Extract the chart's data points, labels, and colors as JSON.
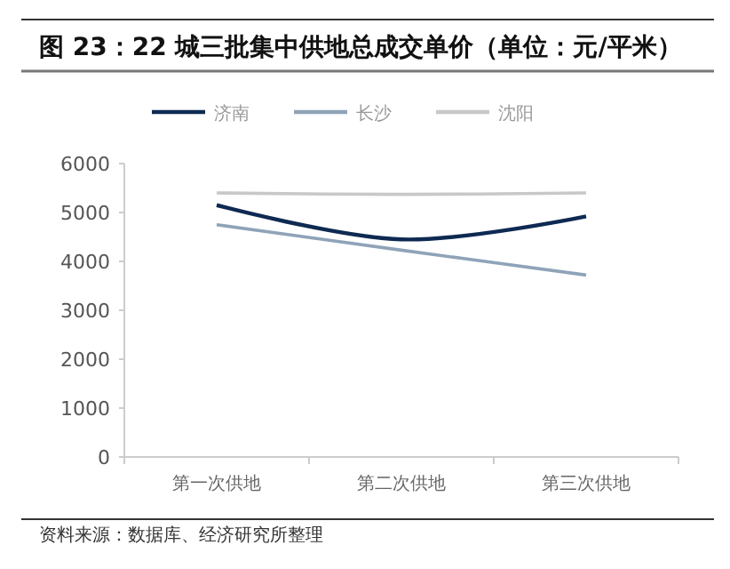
{
  "chart_data": {
    "type": "line",
    "title": "图 23：22 城三批集中供地总成交单价（单位：元/平米）",
    "categories": [
      "第一次供地",
      "第二次供地",
      "第三次供地"
    ],
    "series": [
      {
        "name": "济南",
        "color": "#0e2a52",
        "values": [
          5150,
          4450,
          4920
        ]
      },
      {
        "name": "长沙",
        "color": "#8fa3b8",
        "values": [
          4750,
          4230,
          3720
        ]
      },
      {
        "name": "沈阳",
        "color": "#c8c8c8",
        "values": [
          5400,
          5370,
          5400
        ]
      }
    ],
    "ylim": [
      0,
      6000
    ],
    "yticks": [
      0,
      1000,
      2000,
      3000,
      4000,
      5000,
      6000
    ],
    "grid": false,
    "legend": "top",
    "marker": "none",
    "line_style": "solid",
    "annotations": [
      "资料来源：数据库、经济研究所整理"
    ]
  }
}
